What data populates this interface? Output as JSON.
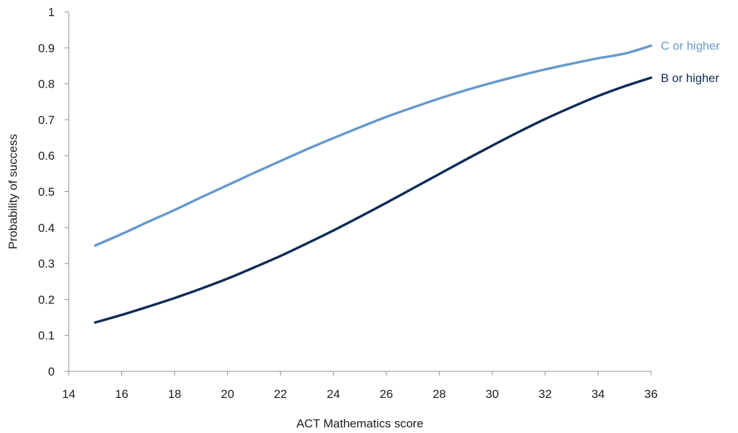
{
  "chart_data": {
    "type": "line",
    "title": "",
    "xlabel": "ACT Mathematics score",
    "ylabel": "Probability of success",
    "xlim": [
      14,
      36
    ],
    "ylim": [
      0,
      1
    ],
    "x_ticks": [
      14,
      16,
      18,
      20,
      22,
      24,
      26,
      28,
      30,
      32,
      34,
      36
    ],
    "y_ticks": [
      "0",
      "0.1",
      "0.2",
      "0.3",
      "0.4",
      "0.5",
      "0.6",
      "0.7",
      "0.8",
      "0.9",
      "1"
    ],
    "grid": false,
    "legend": "inline labels at right end of lines",
    "x": [
      15,
      16,
      17,
      18,
      19,
      20,
      21,
      22,
      23,
      24,
      25,
      26,
      27,
      28,
      29,
      30,
      31,
      32,
      33,
      34,
      35,
      36
    ],
    "series": [
      {
        "name": "C or higher",
        "color": "#6699cc",
        "values": [
          0.35,
          0.382,
          0.416,
          0.449,
          0.484,
          0.518,
          0.552,
          0.585,
          0.618,
          0.649,
          0.679,
          0.708,
          0.734,
          0.759,
          0.782,
          0.803,
          0.822,
          0.84,
          0.856,
          0.871,
          0.884,
          0.906
        ]
      },
      {
        "name": "B or higher",
        "color": "#0d2b57",
        "values": [
          0.136,
          0.157,
          0.18,
          0.204,
          0.23,
          0.258,
          0.289,
          0.321,
          0.356,
          0.392,
          0.43,
          0.469,
          0.509,
          0.549,
          0.589,
          0.628,
          0.666,
          0.702,
          0.735,
          0.766,
          0.793,
          0.817
        ]
      }
    ]
  }
}
